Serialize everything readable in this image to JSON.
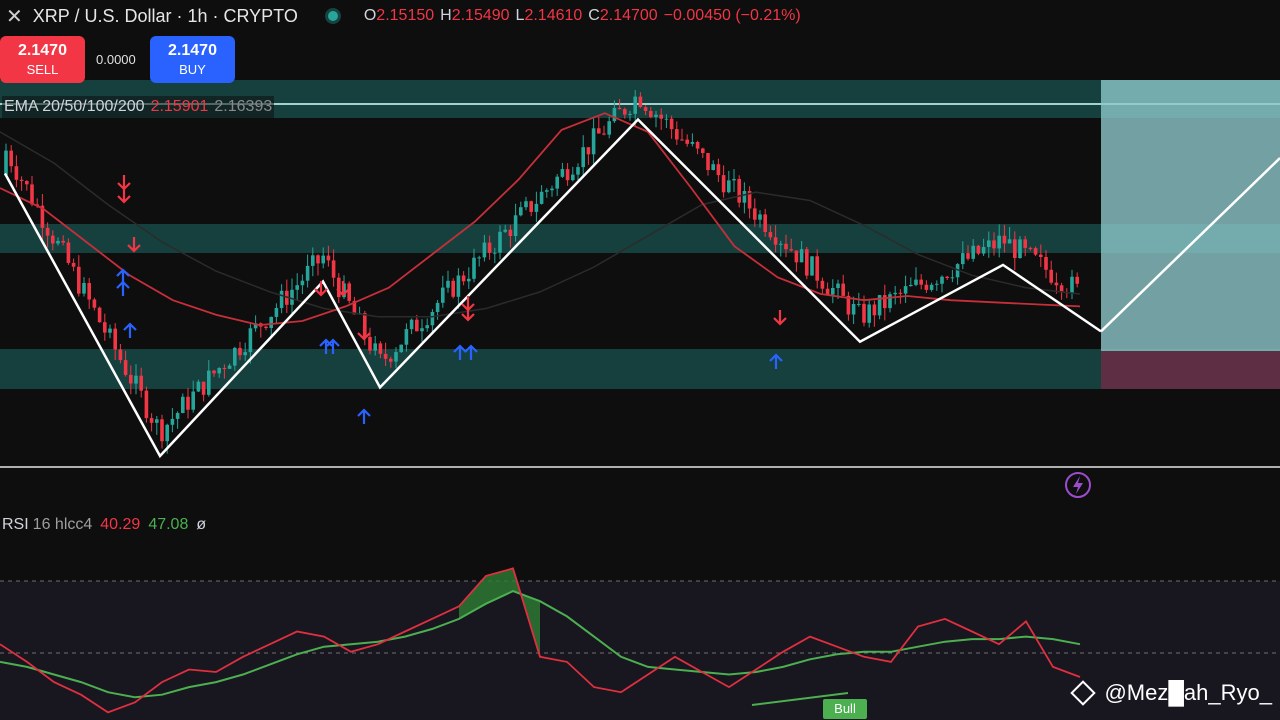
{
  "header": {
    "symbol": "XRP / U.S. Dollar · 1h · CRYPTO",
    "ohlc": [
      {
        "key": "O",
        "value": "2.15150"
      },
      {
        "key": "H",
        "value": "2.15490"
      },
      {
        "key": "L",
        "value": "2.14610"
      },
      {
        "key": "C",
        "value": "2.14700"
      }
    ],
    "change": "−0.00450 (−0.21%)"
  },
  "trade": {
    "sell_price": "2.1470",
    "sell_label": "SELL",
    "spread": "0.0000",
    "buy_price": "2.1470",
    "buy_label": "BUY"
  },
  "ema": {
    "label": "EMA 20/50/100/200",
    "value1": "2.15901",
    "value2": "2.16393"
  },
  "rsi": {
    "name": "RSI",
    "params": "16 hlcc4",
    "value1": "40.29",
    "value2": "47.08",
    "value3": "ø"
  },
  "badge": "Bull",
  "watermark": "@Mez█ah_Ryo_",
  "colors": {
    "bull": "#26a69a",
    "bear": "#f23645",
    "zone": "#1c4b4a",
    "arrow_buy": "#2962ff",
    "arrow_sell": "#f23645",
    "zigzag": "#ffffff",
    "ema": "#c62f3a",
    "rsi": "#e03040",
    "rsi_ma": "#4caf50"
  },
  "chart_data": [
    {
      "type": "line",
      "panel": "price",
      "symbol": "XRP/USD",
      "timeframe": "1h",
      "series": [
        {
          "name": "EMA",
          "values": [
            2.178,
            2.168,
            2.152,
            2.136,
            2.124,
            2.117,
            2.112,
            2.114,
            2.121,
            2.13,
            2.146,
            2.162,
            2.182,
            2.206,
            2.214,
            2.205,
            2.178,
            2.15,
            2.135,
            2.127,
            2.124,
            2.126,
            2.124,
            2.123,
            2.122,
            2.121
          ]
        }
      ],
      "zigzag": [
        2.185,
        2.049,
        2.133,
        2.082,
        2.211,
        2.104,
        2.141,
        2.109,
        2.112,
        2.1
      ],
      "zones": [
        [
          2.222,
          2.23
        ],
        [
          2.17,
          2.18
        ],
        [
          2.099,
          2.113
        ]
      ],
      "note_zones_top_to_bottom": true
    },
    {
      "type": "line",
      "panel": "rsi",
      "series": [
        {
          "name": "RSI",
          "values": [
            45,
            38,
            30,
            25,
            18,
            22,
            30,
            35,
            34,
            40,
            45,
            50,
            48,
            42,
            45,
            50,
            55,
            60,
            72,
            75,
            40,
            38,
            28,
            26,
            33,
            40,
            34,
            28,
            35,
            42,
            48,
            44,
            40,
            38,
            52,
            55,
            50,
            45,
            54,
            36,
            32
          ]
        },
        {
          "name": "MA",
          "values": [
            38,
            36,
            33,
            30,
            26,
            24,
            25,
            28,
            30,
            33,
            37,
            41,
            44,
            45,
            46,
            48,
            51,
            55,
            61,
            66,
            62,
            56,
            48,
            40,
            36,
            35,
            34,
            33,
            34,
            36,
            39,
            41,
            42,
            42,
            44,
            46,
            47,
            47,
            48,
            47,
            45
          ]
        }
      ],
      "badge": "Bull"
    }
  ]
}
